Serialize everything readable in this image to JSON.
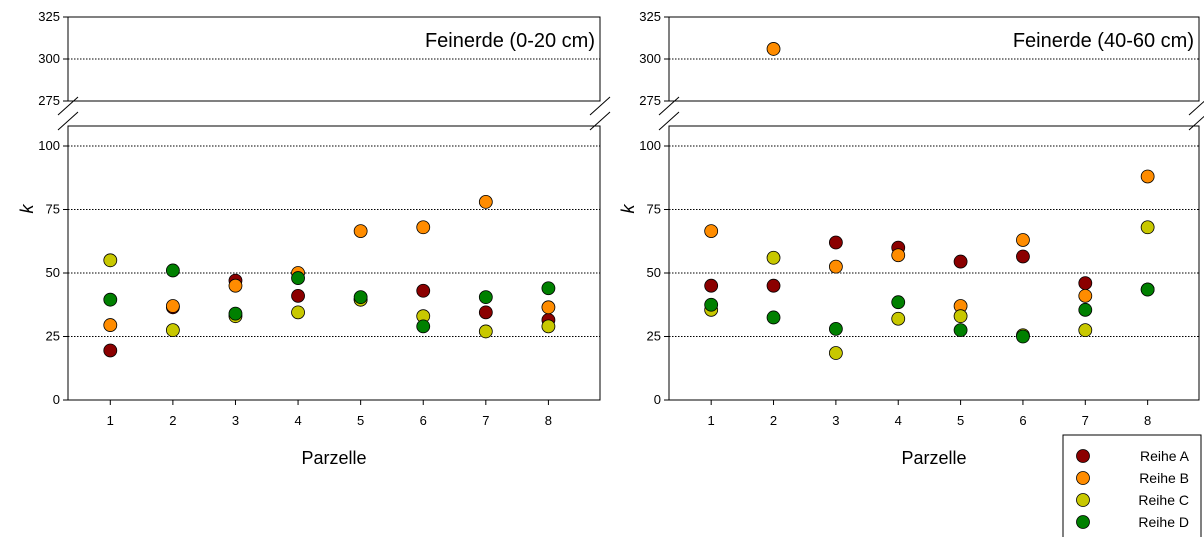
{
  "chart_data": [
    {
      "type": "scatter",
      "title": "Feinerde (0-20 cm)",
      "xlabel": "Parzelle",
      "ylabel": "k",
      "x_categories": [
        "1",
        "2",
        "3",
        "4",
        "5",
        "6",
        "7",
        "8"
      ],
      "y_ticks": [
        "0",
        "25",
        "50",
        "75",
        "100",
        "275",
        "300",
        "325"
      ],
      "y_axis_break": [
        100,
        275
      ],
      "ylim_lower": [
        0,
        100
      ],
      "ylim_upper": [
        275,
        325
      ],
      "grid": "horizontal dotted",
      "series": [
        {
          "name": "Reihe A",
          "color": "#8B0000",
          "x": [
            1,
            2,
            3,
            4,
            5,
            6,
            7,
            8
          ],
          "values": [
            19.5,
            36.5,
            47,
            41,
            39.5,
            43,
            34.5,
            31.5
          ]
        },
        {
          "name": "Reihe B",
          "color": "#FF8C00",
          "x": [
            1,
            2,
            3,
            4,
            5,
            6,
            7,
            8
          ],
          "values": [
            29.5,
            37,
            45,
            50,
            66.5,
            68,
            78,
            36.5
          ]
        },
        {
          "name": "Reihe C",
          "color": "#C8C800",
          "x": [
            1,
            2,
            3,
            4,
            5,
            6,
            7,
            8
          ],
          "values": [
            55,
            27.5,
            33,
            34.5,
            39.5,
            33,
            27,
            29
          ]
        },
        {
          "name": "Reihe D",
          "color": "#008000",
          "x": [
            1,
            2,
            3,
            4,
            5,
            6,
            7,
            8
          ],
          "values": [
            39.5,
            51,
            34,
            48,
            40.5,
            29,
            40.5,
            44
          ]
        }
      ]
    },
    {
      "type": "scatter",
      "title": "Feinerde (40-60 cm)",
      "xlabel": "Parzelle",
      "ylabel": "k",
      "x_categories": [
        "1",
        "2",
        "3",
        "4",
        "5",
        "6",
        "7",
        "8"
      ],
      "y_ticks": [
        "0",
        "25",
        "50",
        "75",
        "100",
        "275",
        "300",
        "325"
      ],
      "y_axis_break": [
        100,
        275
      ],
      "ylim_lower": [
        0,
        100
      ],
      "ylim_upper": [
        275,
        325
      ],
      "grid": "horizontal dotted",
      "series": [
        {
          "name": "Reihe A",
          "color": "#8B0000",
          "x": [
            1,
            2,
            3,
            4,
            5,
            6,
            7,
            8
          ],
          "values": [
            45,
            45,
            62,
            60,
            54.5,
            56.5,
            46,
            43.5
          ]
        },
        {
          "name": "Reihe B",
          "color": "#FF8C00",
          "x": [
            1,
            2,
            3,
            4,
            5,
            6,
            7,
            8
          ],
          "values": [
            66.5,
            306,
            52.5,
            57,
            37,
            63,
            41,
            88
          ]
        },
        {
          "name": "Reihe C",
          "color": "#C8C800",
          "x": [
            1,
            2,
            3,
            4,
            5,
            6,
            7,
            8
          ],
          "values": [
            35.5,
            56,
            18.5,
            32,
            33,
            25.5,
            27.5,
            68
          ]
        },
        {
          "name": "Reihe D",
          "color": "#008000",
          "x": [
            1,
            2,
            3,
            4,
            5,
            6,
            7,
            8
          ],
          "values": [
            37.5,
            32.5,
            28,
            38.5,
            27.5,
            25,
            35.5,
            43.5
          ]
        }
      ]
    }
  ],
  "legend": {
    "placement": "bottom-right",
    "items": [
      {
        "label": "Reihe A",
        "color": "#8B0000"
      },
      {
        "label": "Reihe B",
        "color": "#FF8C00"
      },
      {
        "label": "Reihe C",
        "color": "#C8C800"
      },
      {
        "label": "Reihe D",
        "color": "#008000"
      }
    ]
  }
}
